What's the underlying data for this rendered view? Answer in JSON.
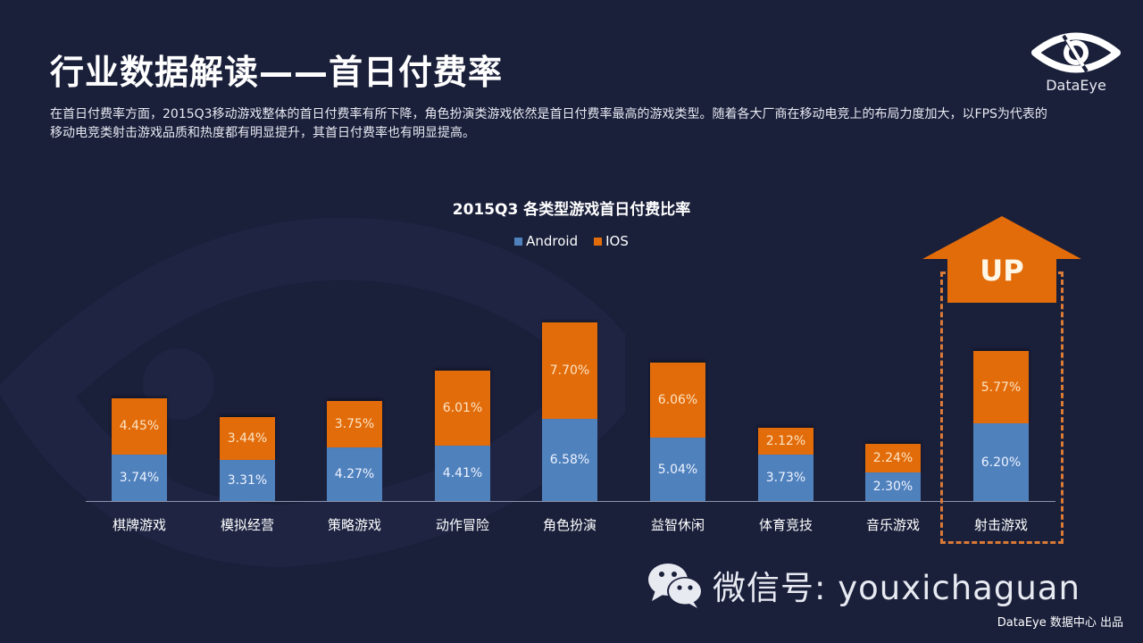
{
  "header": {
    "title": "行业数据解读——首日付费率",
    "intro": "在首日付费率方面，2015Q3移动游戏整体的首日付费率有所下降，角色扮演类游戏依然是首日付费率最高的游戏类型。随着各大厂商在移动电竞上的布局力度加大，以FPS为代表的移动电竞类射击游戏品质和热度都有明显提升，其首日付费率也有明显提高。"
  },
  "logo": {
    "text": "DataEye",
    "icon": "eye-icon"
  },
  "colors": {
    "background": "#1a1f3a",
    "android": "#4f81bd",
    "ios": "#e36c0a",
    "highlight": "#d97a36"
  },
  "chart_data": {
    "type": "bar",
    "stacked": true,
    "title": "2015Q3 各类型游戏首日付费比率",
    "xlabel": "",
    "ylabel": "",
    "legend_position": "top",
    "grid": false,
    "categories": [
      "棋牌游戏",
      "模拟经营",
      "策略游戏",
      "动作冒险",
      "角色扮演",
      "益智休闲",
      "体育竞技",
      "音乐游戏",
      "射击游戏"
    ],
    "series": [
      {
        "name": "Android",
        "color": "#4f81bd",
        "values": [
          3.74,
          3.31,
          4.27,
          4.41,
          6.58,
          5.04,
          3.73,
          2.3,
          6.2
        ],
        "labels": [
          "3.74%",
          "3.31%",
          "4.27%",
          "4.41%",
          "6.58%",
          "5.04%",
          "3.73%",
          "2.30%",
          "6.20%"
        ]
      },
      {
        "name": "IOS",
        "color": "#e36c0a",
        "values": [
          4.45,
          3.44,
          3.75,
          6.01,
          7.7,
          6.06,
          2.12,
          2.24,
          5.77
        ],
        "labels": [
          "4.45%",
          "3.44%",
          "3.75%",
          "6.01%",
          "7.70%",
          "6.06%",
          "2.12%",
          "2.24%",
          "5.77%"
        ]
      }
    ],
    "unit": "%",
    "annotations": [
      {
        "text": "UP",
        "target": "射击游戏",
        "style": "orange up-arrow with dashed highlight box"
      }
    ]
  },
  "footer": {
    "wechat_icon": "wechat-icon",
    "wechat_text": "微信号: youxichaguan",
    "credit": "DataEye 数据中心 出品"
  }
}
